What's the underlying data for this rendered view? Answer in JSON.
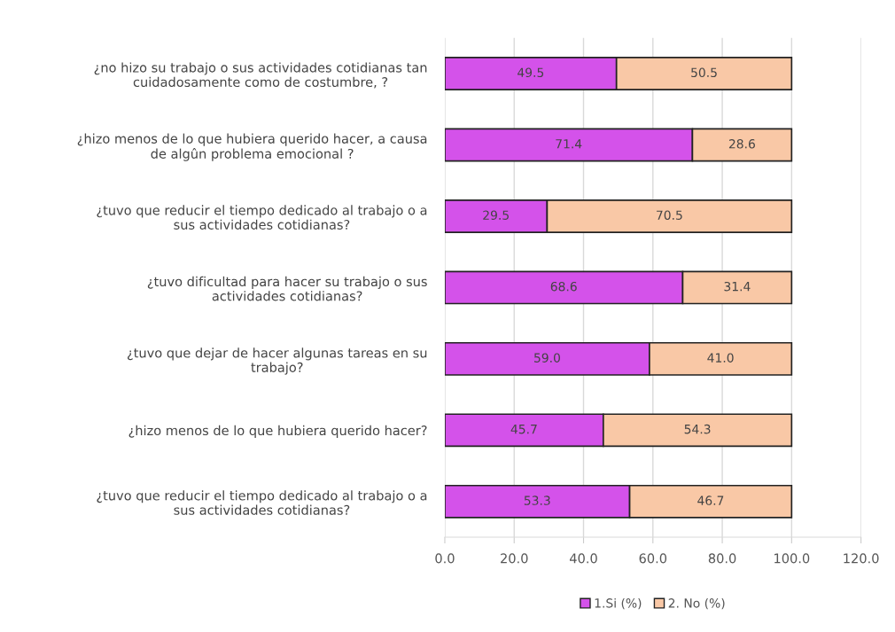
{
  "chart_data": {
    "type": "bar",
    "orientation": "horizontal",
    "stacked": true,
    "categories": [
      "¿no hizo su trabajo o sus actividades cotidianas tan\ncuidadosamente como de costumbre, ?",
      "¿hizo menos de lo que hubiera querido hacer, a causa\nde algûn problema emocional ?",
      "¿tuvo que reducir el tiempo dedicado al trabajo o a\nsus actividades cotidianas?",
      "¿tuvo dificultad para hacer su trabajo o sus\nactividades cotidianas?",
      "¿tuvo que dejar de hacer algunas tareas en su\ntrabajo?",
      "¿hizo menos de lo que hubiera querido hacer?",
      "¿tuvo que reducir el tiempo dedicado al trabajo o a\nsus actividades cotidianas?"
    ],
    "series": [
      {
        "name": "1.Si (%)",
        "color": "#d452ea",
        "values": [
          49.5,
          71.4,
          29.5,
          68.6,
          59.0,
          45.7,
          53.3
        ],
        "value_labels": [
          "49.5",
          "71.4",
          "29.5",
          "68.6",
          "59.0",
          "45.7",
          "53.3"
        ]
      },
      {
        "name": "2. No (%)",
        "color": "#f9c8a6",
        "values": [
          50.5,
          28.6,
          70.5,
          31.4,
          41.0,
          54.3,
          46.7
        ],
        "value_labels": [
          "50.5",
          "28.6",
          "70.5",
          "31.4",
          "41.0",
          "54.3",
          "46.7"
        ]
      }
    ],
    "xlim": [
      0,
      120
    ],
    "xticks": [
      {
        "value": 0,
        "label": "0.0"
      },
      {
        "value": 20,
        "label": "20.0"
      },
      {
        "value": 40,
        "label": "40.0"
      },
      {
        "value": 60,
        "label": "60.0"
      },
      {
        "value": 80,
        "label": "80.0"
      },
      {
        "value": 100,
        "label": "100.0"
      },
      {
        "value": 120,
        "label": "120.0"
      }
    ],
    "grid": "x",
    "legend": "bottom"
  }
}
